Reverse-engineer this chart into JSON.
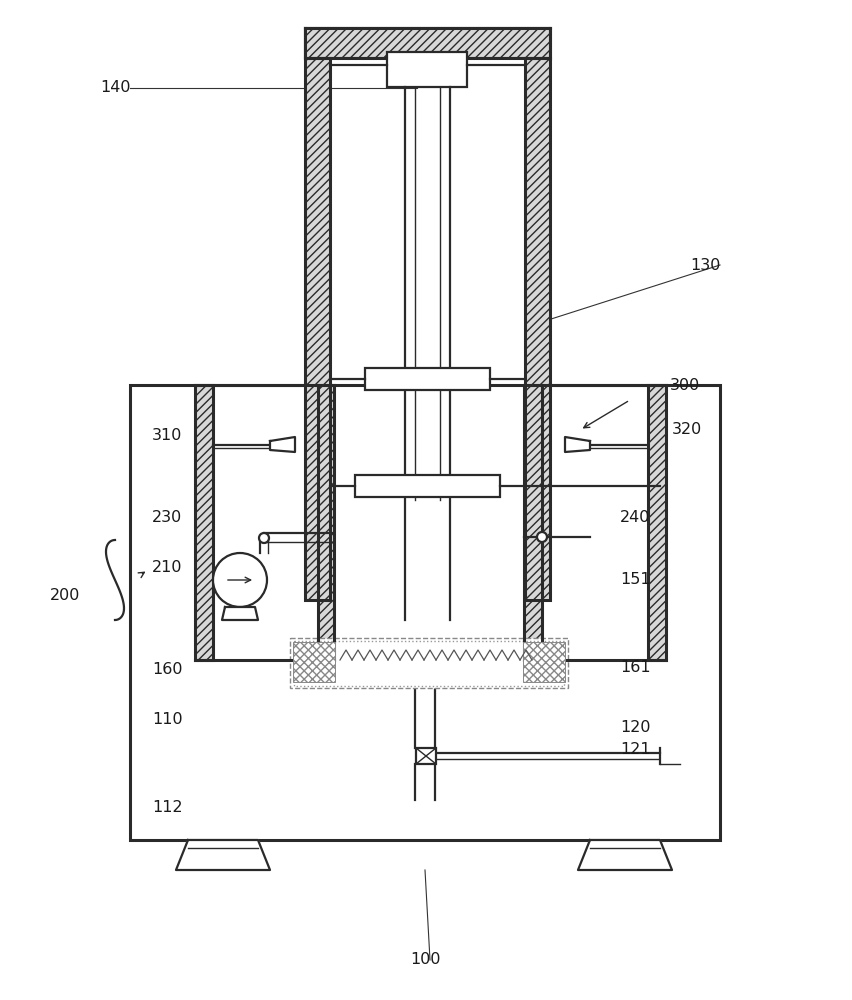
{
  "bg_color": "#ffffff",
  "lc": "#2a2a2a",
  "figsize": [
    8.52,
    10.0
  ],
  "dpi": 100,
  "lw_main": 1.6,
  "lw_thick": 2.2,
  "lw_thin": 1.0,
  "label_fontsize": 11.5
}
